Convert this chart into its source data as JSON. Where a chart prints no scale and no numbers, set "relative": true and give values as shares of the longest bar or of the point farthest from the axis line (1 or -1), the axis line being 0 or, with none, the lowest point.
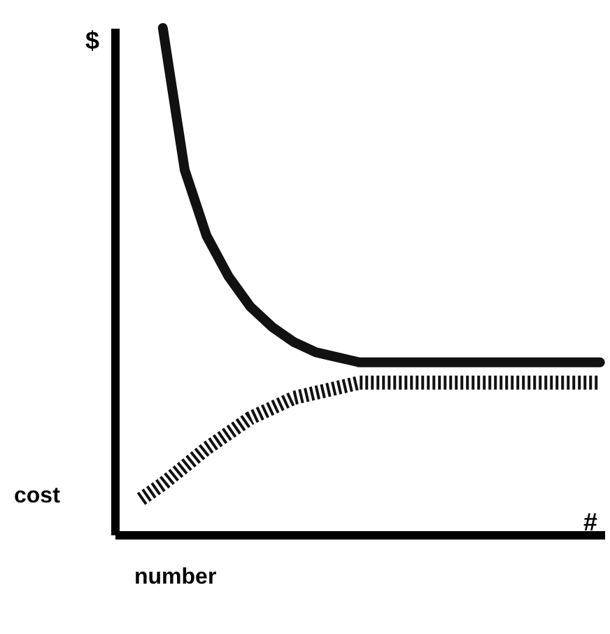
{
  "chart_data": {
    "type": "line",
    "relative": true,
    "ylabel": "$",
    "xlabel": "number",
    "annotations": [
      "cost",
      "#"
    ],
    "categories": [
      null,
      null,
      null,
      null,
      null,
      null,
      null,
      null,
      null,
      null,
      null,
      null,
      null,
      null,
      null,
      null,
      null,
      null,
      null,
      null,
      null,
      null,
      null
    ],
    "series": [
      {
        "color": "#111111",
        "line_style": "solid",
        "values": [
          null,
          null,
          1,
          0.72,
          0.59,
          0.51,
          0.45,
          0.41,
          0.38,
          0.36,
          0.35,
          0.34,
          0.34,
          0.34,
          0.34,
          0.34,
          0.34,
          0.34,
          0.34,
          0.34,
          0.34,
          0.34,
          0.34
        ]
      },
      {
        "color": "#111111",
        "line_style": "dotted",
        "values": [
          null,
          0.07,
          0.1,
          0.135,
          0.17,
          0.2,
          0.23,
          0.25,
          0.27,
          0.28,
          0.29,
          0.3,
          0.3,
          0.3,
          0.3,
          0.3,
          0.3,
          0.3,
          0.3,
          0.3,
          0.3,
          0.3,
          0.3
        ]
      }
    ],
    "grid": false,
    "marker": "none"
  }
}
